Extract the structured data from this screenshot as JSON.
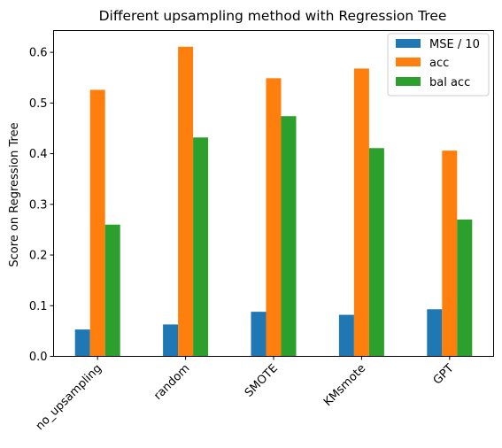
{
  "chart_data": {
    "type": "bar",
    "title": "Different upsampling method with Regression Tree",
    "xlabel": "",
    "ylabel": "Score on Regression Tree",
    "categories": [
      "no_upsampling",
      "random",
      "SMOTE",
      "KMsmote",
      "GPT"
    ],
    "series": [
      {
        "name": "MSE / 10",
        "color": "#1f77b4",
        "values": [
          0.053,
          0.063,
          0.088,
          0.082,
          0.093
        ]
      },
      {
        "name": "acc",
        "color": "#ff7f0e",
        "values": [
          0.526,
          0.611,
          0.549,
          0.568,
          0.406
        ]
      },
      {
        "name": "bal acc",
        "color": "#2ca02c",
        "values": [
          0.26,
          0.432,
          0.474,
          0.411,
          0.27
        ]
      }
    ],
    "ylim": [
      0,
      0.643
    ],
    "yticks": [
      "0.0",
      "0.1",
      "0.2",
      "0.3",
      "0.4",
      "0.5",
      "0.6"
    ],
    "ytick_values": [
      0.0,
      0.1,
      0.2,
      0.3,
      0.4,
      0.5,
      0.6
    ],
    "grid": false,
    "legend_position": "top-right"
  }
}
